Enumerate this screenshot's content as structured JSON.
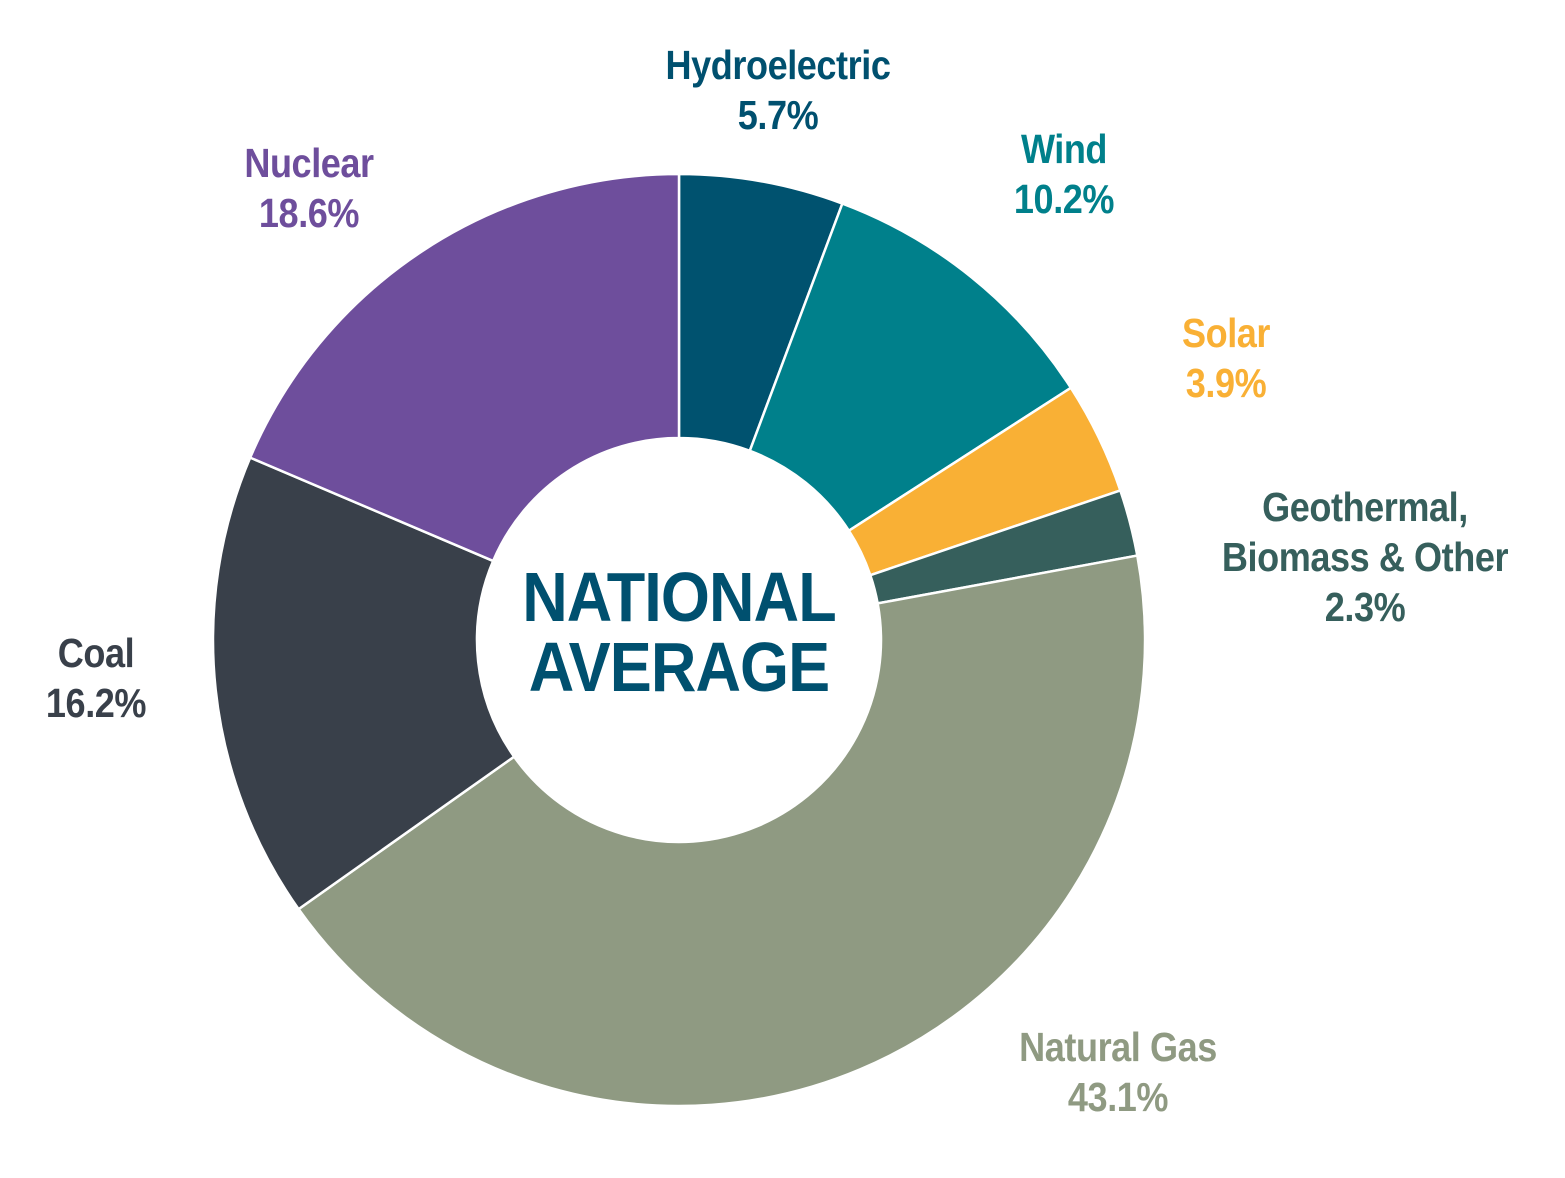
{
  "chart_data": {
    "type": "pie",
    "subtype": "donut",
    "title": "NATIONAL AVERAGE",
    "center_label": [
      "NATIONAL",
      "AVERAGE"
    ],
    "start_angle_deg": 0,
    "direction": "clockwise",
    "categories": [
      "Hydroelectric",
      "Wind",
      "Solar",
      "Geothermal, Biomass & Other",
      "Natural Gas",
      "Coal",
      "Nuclear"
    ],
    "values": [
      5.7,
      10.2,
      3.9,
      2.3,
      43.1,
      16.2,
      18.6
    ],
    "unit": "%",
    "colors": [
      "#00526f",
      "#00808b",
      "#f9b035",
      "#365f5c",
      "#8f9a82",
      "#39404a",
      "#6e4e9c"
    ],
    "value_labels": [
      "5.7%",
      "10.2%",
      "3.9%",
      "2.3%",
      "43.1%",
      "16.2%",
      "18.6%"
    ],
    "legend": "none (direct labels)"
  },
  "labels": [
    {
      "name": "Hydroelectric",
      "lines": [
        "Hydroelectric"
      ],
      "value": "5.7%",
      "color": "#00506f"
    },
    {
      "name": "Wind",
      "lines": [
        "Wind"
      ],
      "value": "10.2%",
      "color": "#00808b"
    },
    {
      "name": "Solar",
      "lines": [
        "Solar"
      ],
      "value": "3.9%",
      "color": "#f9b035"
    },
    {
      "name": "Geothermal, Biomass & Other",
      "lines": [
        "Geothermal,",
        "Biomass & Other"
      ],
      "value": "2.3%",
      "color": "#365f5c"
    },
    {
      "name": "Natural Gas",
      "lines": [
        "Natural Gas"
      ],
      "value": "43.1%",
      "color": "#8f9a82"
    },
    {
      "name": "Coal",
      "lines": [
        "Coal"
      ],
      "value": "16.2%",
      "color": "#39404a"
    },
    {
      "name": "Nuclear",
      "lines": [
        "Nuclear"
      ],
      "value": "18.6%",
      "color": "#6e4e9c"
    }
  ]
}
